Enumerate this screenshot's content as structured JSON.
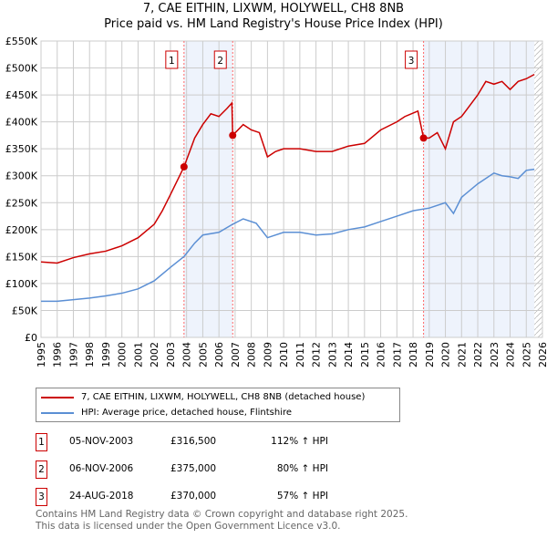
{
  "chart_data": {
    "type": "line",
    "title": "7, CAE EITHIN, LIXWM, HOLYWELL, CH8 8NB",
    "subtitle": "Price paid vs. HM Land Registry's House Price Index (HPI)",
    "xlim": [
      1995,
      2026
    ],
    "ylim": [
      0,
      550000
    ],
    "x_ticks": [
      "1995",
      "1996",
      "1997",
      "1998",
      "1999",
      "2000",
      "2001",
      "2002",
      "2003",
      "2004",
      "2005",
      "2006",
      "2007",
      "2008",
      "2009",
      "2010",
      "2011",
      "2012",
      "2013",
      "2014",
      "2015",
      "2016",
      "2017",
      "2018",
      "2019",
      "2020",
      "2021",
      "2022",
      "2023",
      "2024",
      "2025",
      "2026"
    ],
    "y_ticks": [
      {
        "v": 0,
        "label": "£0"
      },
      {
        "v": 50000,
        "label": "£50K"
      },
      {
        "v": 100000,
        "label": "£100K"
      },
      {
        "v": 150000,
        "label": "£150K"
      },
      {
        "v": 200000,
        "label": "£200K"
      },
      {
        "v": 250000,
        "label": "£250K"
      },
      {
        "v": 300000,
        "label": "£300K"
      },
      {
        "v": 350000,
        "label": "£350K"
      },
      {
        "v": 400000,
        "label": "£400K"
      },
      {
        "v": 450000,
        "label": "£450K"
      },
      {
        "v": 500000,
        "label": "£500K"
      },
      {
        "v": 550000,
        "label": "£550K"
      }
    ],
    "series": [
      {
        "name": "7, CAE EITHIN, LIXWM, HOLYWELL, CH8 8NB (detached house)",
        "color": "#cc0000",
        "x": [
          1995,
          1996,
          1997,
          1998,
          1999,
          2000,
          2001,
          2002,
          2002.5,
          2003,
          2003.84,
          2004.5,
          2005,
          2005.5,
          2006,
          2006.5,
          2006.8,
          2006.85,
          2007.5,
          2008,
          2008.5,
          2009,
          2009.5,
          2010,
          2011,
          2012,
          2013,
          2014,
          2015,
          2016,
          2017,
          2017.5,
          2018.3,
          2018.65,
          2019,
          2019.5,
          2020,
          2020.5,
          2021,
          2021.5,
          2022,
          2022.5,
          2023,
          2023.5,
          2024,
          2024.5,
          2025,
          2025.5
        ],
        "y": [
          140000,
          138000,
          148000,
          155000,
          160000,
          170000,
          185000,
          210000,
          235000,
          265000,
          316500,
          370000,
          395000,
          415000,
          410000,
          425000,
          435000,
          375000,
          395000,
          385000,
          380000,
          335000,
          345000,
          350000,
          350000,
          345000,
          345000,
          355000,
          360000,
          385000,
          400000,
          410000,
          420000,
          370000,
          370000,
          380000,
          350000,
          400000,
          410000,
          430000,
          450000,
          475000,
          470000,
          475000,
          460000,
          475000,
          480000,
          488000
        ]
      },
      {
        "name": "HPI: Average price, detached house, Flintshire",
        "color": "#5b8fd4",
        "x": [
          1995,
          1996,
          1997,
          1998,
          1999,
          2000,
          2001,
          2002,
          2003,
          2003.84,
          2004.5,
          2005,
          2006,
          2006.85,
          2007.5,
          2008.3,
          2009,
          2010,
          2011,
          2012,
          2013,
          2014,
          2015,
          2016,
          2017,
          2018,
          2019,
          2020,
          2020.5,
          2021,
          2022,
          2023,
          2023.5,
          2024,
          2024.5,
          2025,
          2025.5
        ],
        "y": [
          67000,
          67000,
          70000,
          73000,
          77000,
          82000,
          90000,
          105000,
          130000,
          150000,
          175000,
          190000,
          195000,
          210000,
          220000,
          212000,
          185000,
          195000,
          195000,
          190000,
          192000,
          200000,
          205000,
          215000,
          225000,
          235000,
          240000,
          250000,
          230000,
          260000,
          285000,
          305000,
          300000,
          298000,
          295000,
          310000,
          312000
        ]
      }
    ],
    "sales": [
      {
        "n": "1",
        "x": 2003.84,
        "y": 316500
      },
      {
        "n": "2",
        "x": 2006.85,
        "y": 375000
      },
      {
        "n": "3",
        "x": 2018.65,
        "y": 370000
      }
    ],
    "shaded": [
      [
        2003.84,
        2006.85
      ],
      [
        2018.65,
        2025.5
      ]
    ],
    "hatched_from": 2025.5
  },
  "legend": {
    "red": "7, CAE EITHIN, LIXWM, HOLYWELL, CH8 8NB (detached house)",
    "blue": "HPI: Average price, detached house, Flintshire"
  },
  "table": [
    {
      "n": "1",
      "date": "05-NOV-2003",
      "price": "£316,500",
      "hpi": "112% ↑ HPI"
    },
    {
      "n": "2",
      "date": "06-NOV-2006",
      "price": "£375,000",
      "hpi": "80% ↑ HPI"
    },
    {
      "n": "3",
      "date": "24-AUG-2018",
      "price": "£370,000",
      "hpi": "57% ↑ HPI"
    }
  ],
  "footer": {
    "line1": "Contains HM Land Registry data © Crown copyright and database right 2025.",
    "line2": "This data is licensed under the Open Government Licence v3.0."
  }
}
